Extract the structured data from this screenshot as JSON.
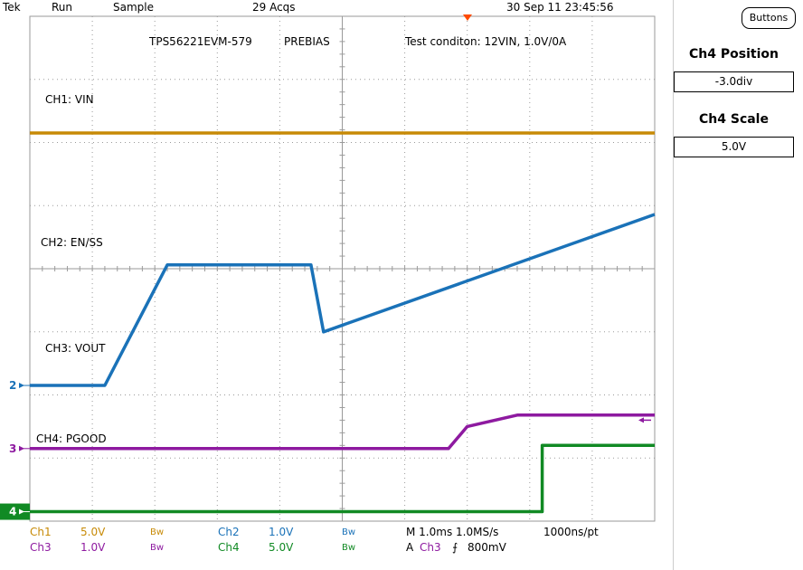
{
  "header": {
    "brand": "Tek",
    "run": "Run",
    "mode": "Sample",
    "acqs": "29 Acqs",
    "datetime": "30 Sep 11 23:45:56"
  },
  "side": {
    "buttons_label": "Buttons",
    "pos_title": "Ch4 Position",
    "pos_value": "-3.0div",
    "scale_title": "Ch4 Scale",
    "scale_value": "5.0V"
  },
  "footer": {
    "ch1_name": "Ch1",
    "ch1_scale": "5.0V",
    "ch1_bw": "Bw",
    "ch2_name": "Ch2",
    "ch2_scale": "1.0V",
    "ch2_bw": "Bw",
    "ch3_name": "Ch3",
    "ch3_scale": "1.0V",
    "ch3_bw": "Bw",
    "ch4_name": "Ch4",
    "ch4_scale": "5.0V",
    "ch4_bw": "Bw",
    "timebase": "M 1.0ms 1.0MS/s",
    "record": "1000ns/pt",
    "trigger_prefix": "A",
    "trigger_ch": "Ch3",
    "trigger_slope": "⨍",
    "trigger_level": "800mV"
  },
  "colors": {
    "ch1": "#c78a06",
    "ch2": "#1a72b8",
    "ch3": "#8e1aa0",
    "ch4": "#118a24",
    "grid": "#9a9a9a"
  },
  "chart_data": {
    "type": "line",
    "grid_divisions_x": 10,
    "grid_divisions_y": 8,
    "xlim": [
      0,
      10
    ],
    "ylim": [
      0,
      8
    ],
    "annotations": [
      "TPS56221EVM-579",
      "PREBIAS",
      "Test conditon: 12VIN, 1.0V/0A"
    ],
    "ground_markers": [
      {
        "label": "2",
        "y": 2.15
      },
      {
        "label": "3",
        "y": 1.15
      },
      {
        "label": "4",
        "y": 0.15
      }
    ],
    "series": [
      {
        "name": "CH1: VIN",
        "color_key": "ch1",
        "x": [
          0,
          10
        ],
        "y": [
          6.15,
          6.15
        ]
      },
      {
        "name": "CH2: EN/SS",
        "color_key": "ch2",
        "x": [
          0,
          1.2,
          2.2,
          4.5,
          4.7,
          10
        ],
        "y": [
          2.15,
          2.15,
          4.06,
          4.06,
          3.0,
          4.86
        ]
      },
      {
        "name": "CH3: VOUT",
        "color_key": "ch3",
        "x": [
          0,
          6.7,
          7.0,
          7.8,
          10
        ],
        "y": [
          1.15,
          1.15,
          1.5,
          1.68,
          1.68
        ]
      },
      {
        "name": "CH4: PGOOD",
        "color_key": "ch4",
        "x": [
          0,
          8.2,
          8.2,
          10
        ],
        "y": [
          0.15,
          0.15,
          1.2,
          1.2
        ]
      }
    ]
  }
}
